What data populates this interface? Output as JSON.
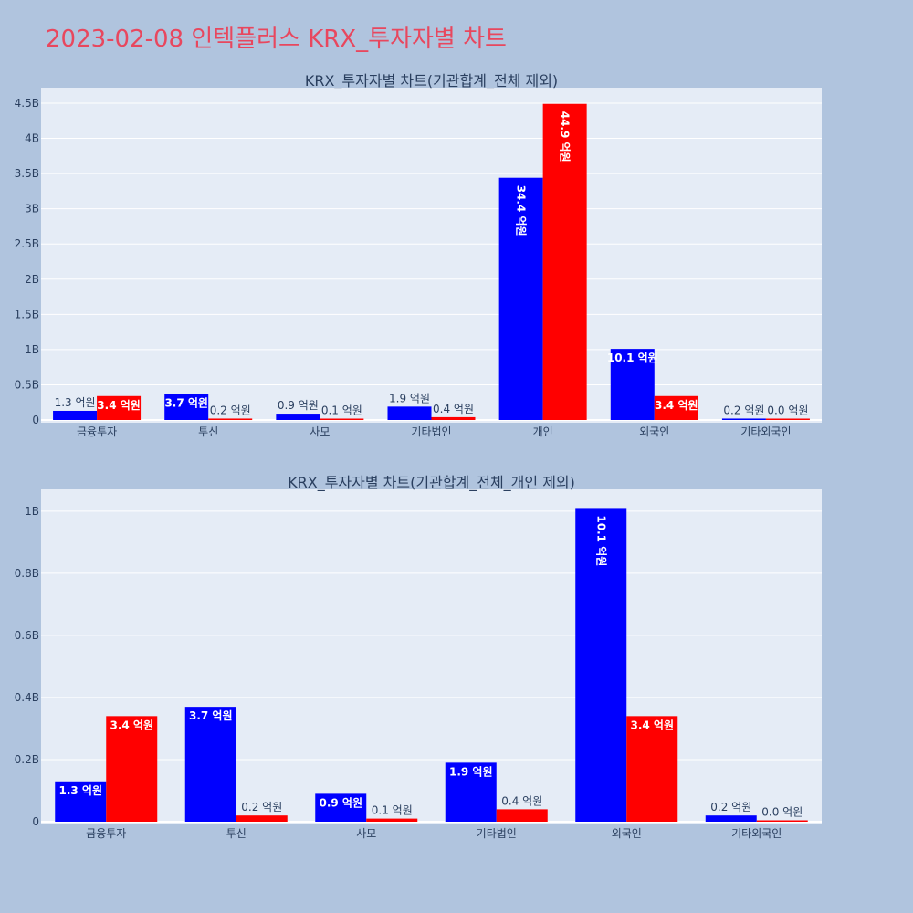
{
  "title": "2023-02-08 인텍플러스 KRX_투자자별 차트",
  "colors": {
    "buy": "#0000ff",
    "sell": "#ff0000",
    "plot_bg": "#e5ecf6",
    "page_bg": "#b0c4de",
    "title": "#e8475e"
  },
  "chart_data": [
    {
      "type": "bar",
      "title": "KRX_투자자별 차트(기관합계_전체 제외)",
      "categories": [
        "금융투자",
        "투신",
        "사모",
        "기타법인",
        "개인",
        "외국인",
        "기타외국인"
      ],
      "yticks": [
        0,
        0.5,
        1,
        1.5,
        2,
        2.5,
        3,
        3.5,
        4,
        4.5
      ],
      "ytick_labels": [
        "0",
        "0.5B",
        "1B",
        "1.5B",
        "2B",
        "2.5B",
        "3B",
        "3.5B",
        "4B",
        "4.5B"
      ],
      "ylim": [
        0,
        4.72
      ],
      "grid": true,
      "series": [
        {
          "color": "#0000ff",
          "values": [
            0.13,
            0.37,
            0.09,
            0.19,
            3.44,
            1.01,
            0.02
          ],
          "labels": [
            "1.3 억원",
            "3.7 억원",
            "0.9 억원",
            "1.9 억원",
            "34.4 억원",
            "10.1 억원",
            "0.2 억원"
          ]
        },
        {
          "color": "#ff0000",
          "values": [
            0.34,
            0.02,
            0.01,
            0.04,
            4.49,
            0.34,
            0.0
          ],
          "labels": [
            "3.4 억원",
            "0.2 억원",
            "0.1 억원",
            "0.4 억원",
            "44.9 억원",
            "3.4 억원",
            "0.0 억원"
          ]
        }
      ]
    },
    {
      "type": "bar",
      "title": "KRX_투자자별 차트(기관합계_전체_개인 제외)",
      "categories": [
        "금융투자",
        "투신",
        "사모",
        "기타법인",
        "외국인",
        "기타외국인"
      ],
      "yticks": [
        0,
        0.2,
        0.4,
        0.6,
        0.8,
        1
      ],
      "ytick_labels": [
        "0",
        "0.2B",
        "0.4B",
        "0.6B",
        "0.8B",
        "1B"
      ],
      "ylim": [
        0,
        1.07
      ],
      "grid": true,
      "series": [
        {
          "color": "#0000ff",
          "values": [
            0.13,
            0.37,
            0.09,
            0.19,
            1.01,
            0.02
          ],
          "labels": [
            "1.3 억원",
            "3.7 억원",
            "0.9 억원",
            "1.9 억원",
            "10.1 억원",
            "0.2 억원"
          ]
        },
        {
          "color": "#ff0000",
          "values": [
            0.34,
            0.02,
            0.01,
            0.04,
            0.34,
            0.0
          ],
          "labels": [
            "3.4 억원",
            "0.2 억원",
            "0.1 억원",
            "0.4 억원",
            "3.4 억원",
            "0.0 억원"
          ]
        }
      ]
    }
  ]
}
